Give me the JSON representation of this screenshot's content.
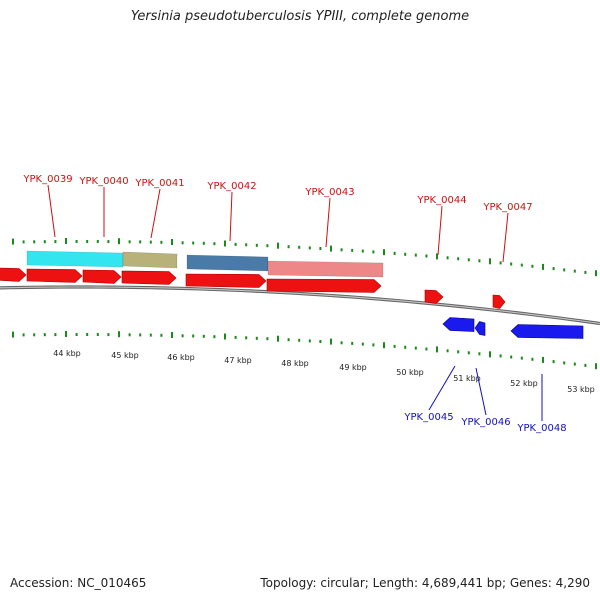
{
  "title": "Yersinia pseudotuberculosis YPIII, complete genome",
  "footer": {
    "accession": "Accession: NC_010465",
    "summary": "Topology: circular; Length: 4,689,441 bp; Genes: 4,290"
  },
  "colors": {
    "cds_forward": "#ee1111",
    "cds_reverse": "#1a1aee",
    "label_forward": "#cc1111",
    "label_reverse": "#1111bb",
    "tick": "#1a8a1a",
    "backbone": "#888888",
    "ruler_text": "#222222"
  },
  "ruler": {
    "unit": "kbp",
    "labels": [
      "44 kbp",
      "45 kbp",
      "46 kbp",
      "47 kbp",
      "48 kbp",
      "49 kbp",
      "50 kbp",
      "51 kbp",
      "52 kbp",
      "53 kbp"
    ]
  },
  "genes_top": [
    {
      "name": "YPK_0039"
    },
    {
      "name": "YPK_0040"
    },
    {
      "name": "YPK_0041"
    },
    {
      "name": "YPK_0042"
    },
    {
      "name": "YPK_0043"
    },
    {
      "name": "YPK_0044"
    },
    {
      "name": "YPK_0047"
    }
  ],
  "genes_bottom": [
    {
      "name": "YPK_0045"
    },
    {
      "name": "YPK_0046"
    },
    {
      "name": "YPK_0048"
    }
  ],
  "features": [
    {
      "name": "cyan-feature",
      "color": "#33e5ee"
    },
    {
      "name": "olive-feature",
      "color": "#b8b27a"
    },
    {
      "name": "steelblue-feature",
      "color": "#4a7aa8"
    },
    {
      "name": "salmon-feature",
      "color": "#ee8888"
    }
  ]
}
